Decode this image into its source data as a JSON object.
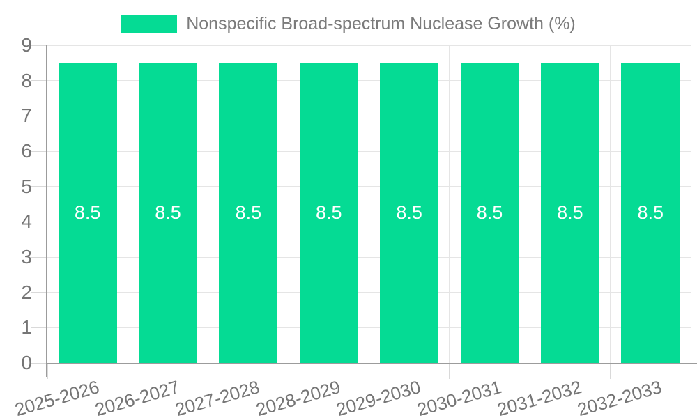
{
  "chart_data": {
    "type": "bar",
    "title": "",
    "legend": {
      "position": "top-center",
      "items": [
        {
          "label": "Nonspecific Broad-spectrum Nuclease Growth (%)",
          "color": "#05db94"
        }
      ]
    },
    "categories": [
      "2025-2026",
      "2026-2027",
      "2027-2028",
      "2028-2029",
      "2029-2030",
      "2030-2031",
      "2031-2032",
      "2032-2033"
    ],
    "series": [
      {
        "name": "Nonspecific Broad-spectrum Nuclease Growth (%)",
        "color": "#05db94",
        "values": [
          8.5,
          8.5,
          8.5,
          8.5,
          8.5,
          8.5,
          8.5,
          8.5
        ]
      }
    ],
    "value_labels": {
      "show": true,
      "position": "inside-middle",
      "texts": [
        "8.5",
        "8.5",
        "8.5",
        "8.5",
        "8.5",
        "8.5",
        "8.5",
        "8.5"
      ]
    },
    "axes": {
      "y": {
        "min": 0,
        "max": 9,
        "tick_labels": [
          "0",
          "1",
          "2",
          "3",
          "4",
          "5",
          "6",
          "7",
          "8",
          "9"
        ],
        "grid": true
      },
      "x": {
        "tick_labels": [
          "2025-2026",
          "2026-2027",
          "2027-2028",
          "2028-2029",
          "2029-2030",
          "2030-2031",
          "2031-2032",
          "2032-2033"
        ],
        "label_rotation_deg": -16,
        "grid": true
      }
    },
    "colors": {
      "bar": "#05db94",
      "bar_label": "#ffffff",
      "grid": "#e5e5e5",
      "tick": "#d9d9d9",
      "axis_line": "#9c9c9c",
      "axis_text": "#757575",
      "legend_text": "#7b7b7b",
      "background": "#ffffff"
    }
  }
}
